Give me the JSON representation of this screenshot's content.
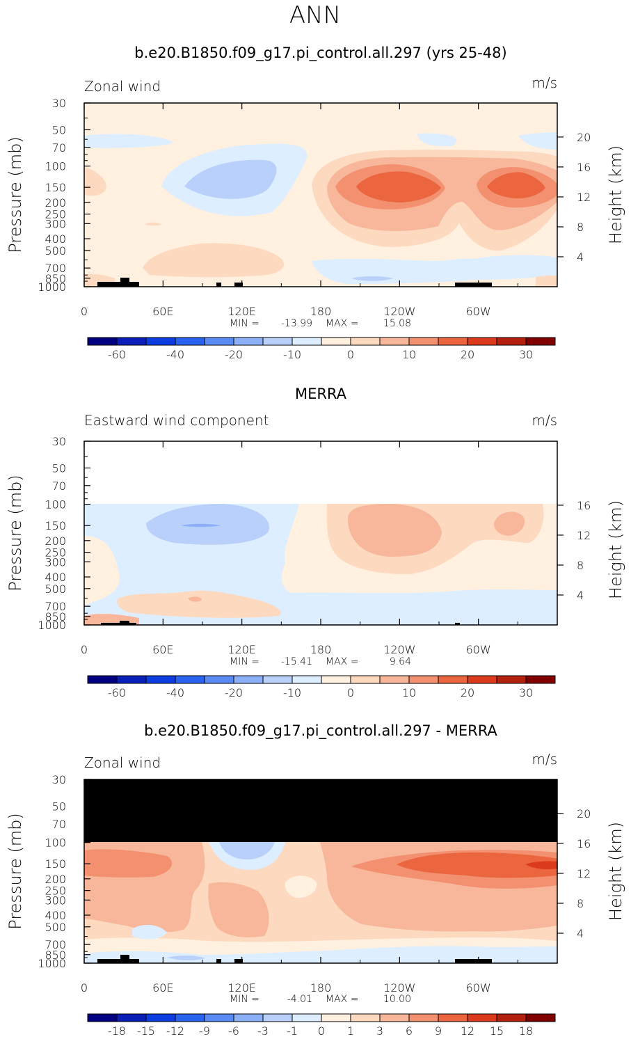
{
  "figure_title": "ANN",
  "colors": {
    "scale": [
      "#000080",
      "#0a1fb8",
      "#0b3de0",
      "#2a62f0",
      "#5a8af4",
      "#8cb0f7",
      "#b9d0fb",
      "#dceeff",
      "#fff0e0",
      "#fdd9c0",
      "#f8b79a",
      "#f29070",
      "#eb653f",
      "#dc3a1c",
      "#b3200e",
      "#800000"
    ],
    "missing": "#000000",
    "topography": "#000000"
  },
  "chart_data": [
    {
      "type": "heatmap",
      "title": "b.e20.B1850.f09_g17.pi_control.all.297 (yrs 25-48)",
      "variable_label": "Zonal wind",
      "units": "m/s",
      "ylabel": "Pressure (mb)",
      "y2label": "Height (km)",
      "x_ticks": [
        "0",
        "60E",
        "120E",
        "180",
        "120W",
        "60W"
      ],
      "y_ticks": [
        "30",
        "50",
        "70",
        "100",
        "150",
        "200",
        "250",
        "300",
        "400",
        "500",
        "700",
        "850",
        "1000"
      ],
      "y2_ticks": [
        "20",
        "16",
        "12",
        "8",
        "4"
      ],
      "stats": {
        "min_label": "MIN =",
        "min": "-13.99",
        "max_label": "MAX =",
        "max": "15.08"
      },
      "colorbar_labels": [
        "-60",
        "-40",
        "-20",
        "-10",
        "0",
        "10",
        "20",
        "30"
      ],
      "approx_extremes": {
        "min": -13.99,
        "max": 15.08
      }
    },
    {
      "type": "heatmap",
      "title": "MERRA",
      "variable_label": "Eastward wind component",
      "units": "m/s",
      "ylabel": "Pressure (mb)",
      "y2label": "Height (km)",
      "x_ticks": [
        "0",
        "60E",
        "120E",
        "180",
        "120W",
        "60W"
      ],
      "y_ticks": [
        "30",
        "50",
        "70",
        "100",
        "150",
        "200",
        "250",
        "300",
        "400",
        "500",
        "700",
        "850",
        "1000"
      ],
      "y2_ticks": [
        "16",
        "12",
        "8",
        "4"
      ],
      "stats": {
        "min_label": "MIN =",
        "min": "-15.41",
        "max_label": "MAX =",
        "max": "9.64"
      },
      "colorbar_labels": [
        "-60",
        "-40",
        "-20",
        "-10",
        "0",
        "10",
        "20",
        "30"
      ],
      "approx_extremes": {
        "min": -15.41,
        "max": 9.64
      }
    },
    {
      "type": "heatmap",
      "title": "b.e20.B1850.f09_g17.pi_control.all.297 - MERRA",
      "variable_label": "Zonal wind",
      "units": "m/s",
      "ylabel": "Pressure (mb)",
      "y2label": "Height (km)",
      "x_ticks": [
        "0",
        "60E",
        "120E",
        "180",
        "120W",
        "60W"
      ],
      "y_ticks": [
        "30",
        "50",
        "70",
        "100",
        "150",
        "200",
        "250",
        "300",
        "400",
        "500",
        "700",
        "850",
        "1000"
      ],
      "y2_ticks": [
        "20",
        "16",
        "12",
        "8",
        "4"
      ],
      "stats": {
        "min_label": "MIN =",
        "min": "-4.01",
        "max_label": "MAX =",
        "max": "10.00"
      },
      "colorbar_labels": [
        "-18",
        "-15",
        "-12",
        "-9",
        "-6",
        "-3",
        "-1",
        "0",
        "1",
        "3",
        "6",
        "9",
        "12",
        "15",
        "18"
      ],
      "approx_extremes": {
        "min": -4.01,
        "max": 10.0
      }
    }
  ]
}
